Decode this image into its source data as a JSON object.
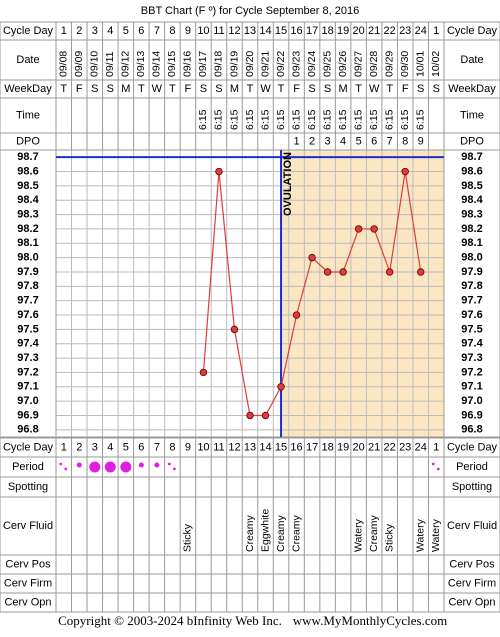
{
  "chart_data": {
    "type": "line",
    "title": "BBT Chart (F º) for Cycle September 8, 2016",
    "row_labels": [
      "Cycle Day",
      "Date",
      "WeekDay",
      "Time",
      "DPO",
      "Period",
      "Spotting",
      "Cerv Fluid",
      "Cerv Pos",
      "Cerv Firm",
      "Cerv Opn"
    ],
    "categories": [
      1,
      2,
      3,
      4,
      5,
      6,
      7,
      8,
      9,
      10,
      11,
      12,
      13,
      14,
      15,
      16,
      17,
      18,
      19,
      20,
      21,
      22,
      23,
      24,
      1
    ],
    "dates": [
      "09/08",
      "09/09",
      "09/10",
      "09/11",
      "09/12",
      "09/13",
      "09/14",
      "09/15",
      "09/16",
      "09/17",
      "09/18",
      "09/19",
      "09/20",
      "09/21",
      "09/22",
      "09/23",
      "09/24",
      "09/25",
      "09/26",
      "09/27",
      "09/28",
      "09/29",
      "09/30",
      "10/01",
      "10/02"
    ],
    "weekdays": [
      "T",
      "F",
      "S",
      "S",
      "M",
      "T",
      "W",
      "T",
      "F",
      "S",
      "S",
      "M",
      "T",
      "W",
      "T",
      "F",
      "S",
      "S",
      "M",
      "T",
      "W",
      "T",
      "F",
      "S",
      "S"
    ],
    "times": [
      null,
      null,
      null,
      null,
      null,
      null,
      null,
      null,
      null,
      "6:15",
      "6:15",
      "6:15",
      "6:15",
      "6:15",
      "6:15",
      "6:15",
      "6:15",
      "6:15",
      "6:15",
      "6:15",
      "6:15",
      "6:15",
      "6:15",
      "6:15",
      null
    ],
    "dpo": [
      null,
      null,
      null,
      null,
      null,
      null,
      null,
      null,
      null,
      null,
      null,
      null,
      null,
      null,
      null,
      1,
      2,
      3,
      4,
      5,
      6,
      7,
      8,
      9,
      null
    ],
    "values": [
      null,
      null,
      null,
      null,
      null,
      null,
      null,
      null,
      null,
      97.2,
      98.6,
      97.5,
      96.9,
      96.9,
      97.1,
      97.6,
      98.0,
      97.9,
      97.9,
      98.2,
      98.2,
      97.9,
      98.6,
      97.9,
      null
    ],
    "color": "#e03c3c",
    "ylim": [
      96.75,
      98.75
    ],
    "yticks": [
      98.7,
      98.6,
      98.5,
      98.4,
      98.3,
      98.2,
      98.1,
      {
        "value": 98.0,
        "label": "98.0"
      },
      97.9,
      97.8,
      97.7,
      97.6,
      97.5,
      97.4,
      97.3,
      97.2,
      97.1,
      {
        "value": 97.0,
        "label": "97.0"
      },
      96.9,
      96.8
    ],
    "grid": true,
    "coverline": 98.7,
    "ovulation_day": 15,
    "ovulation_label": "OVULATION",
    "cervical_fluid": [
      null,
      null,
      null,
      null,
      null,
      null,
      null,
      null,
      "Sticky",
      null,
      null,
      null,
      "Creamy",
      "Eggwhite",
      "Creamy",
      "Creamy",
      null,
      null,
      null,
      "Watery",
      "Creamy",
      "Sticky",
      null,
      "Watery",
      "Watery"
    ],
    "footer": [
      "Copyright © 2003-2024 bInfinity Web Inc.",
      "www.MyMonthlyCycles.com"
    ]
  }
}
